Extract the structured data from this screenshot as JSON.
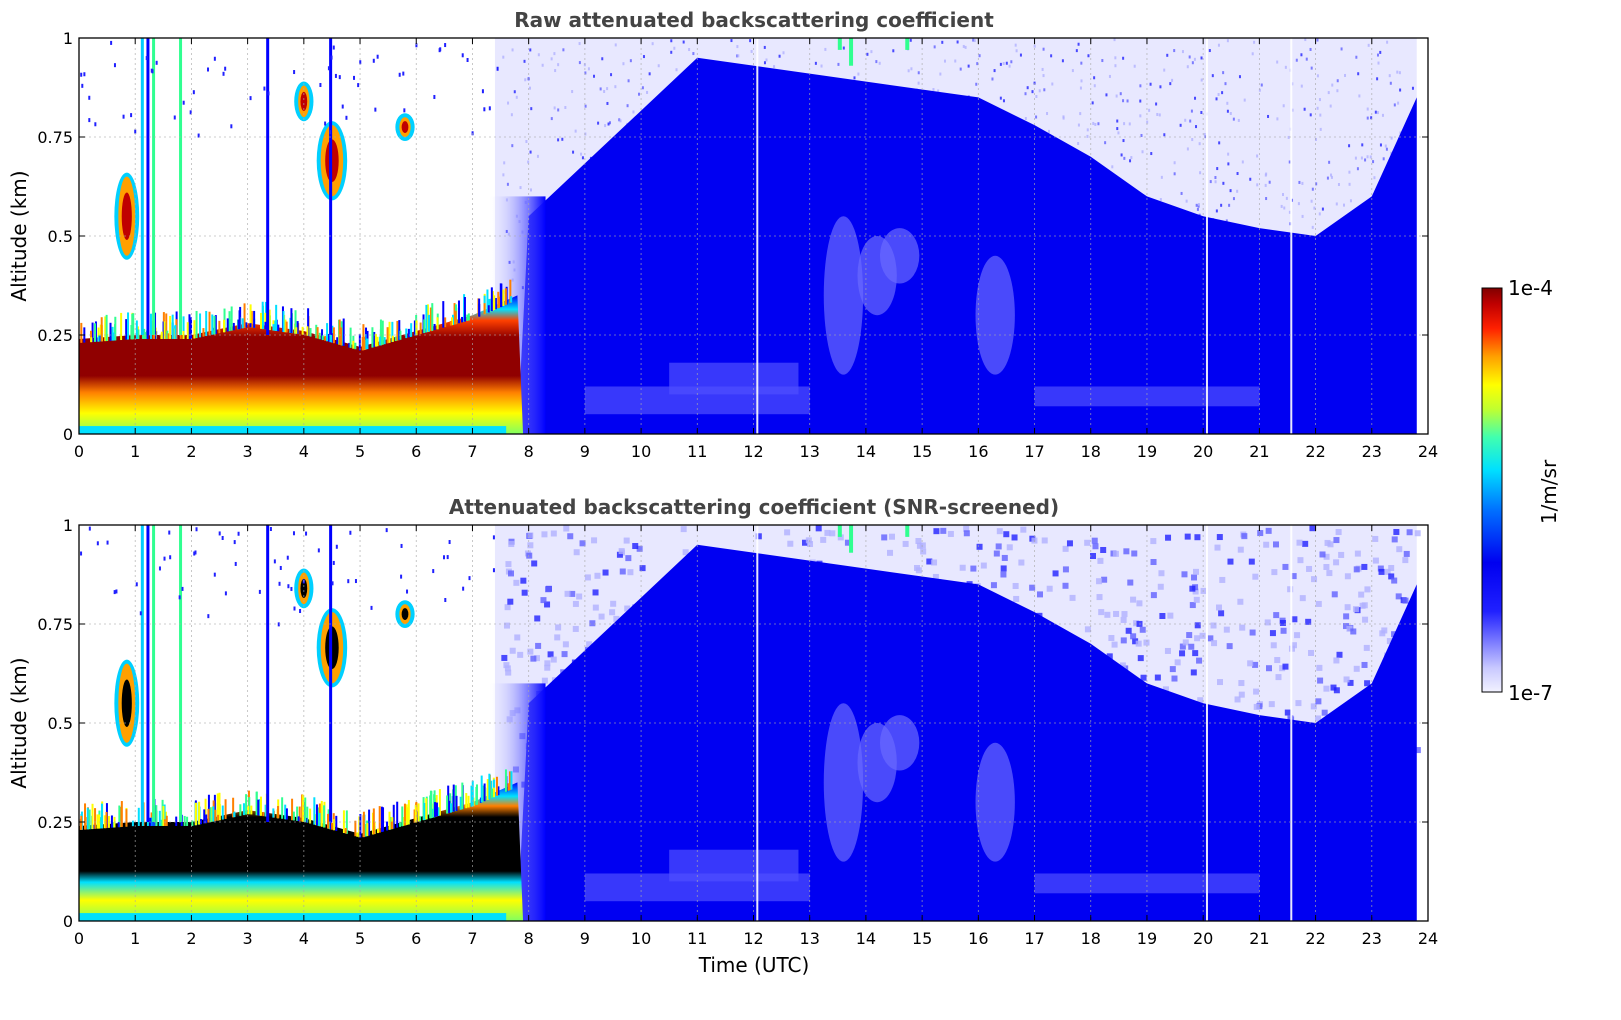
{
  "chart_data": [
    {
      "type": "heatmap",
      "title": "Raw attenuated backscattering coefficient",
      "xlabel": "",
      "ylabel": "Altitude (km)",
      "xlim": [
        0,
        24
      ],
      "ylim": [
        0,
        1
      ],
      "x_ticks": [
        "0",
        "1",
        "2",
        "3",
        "4",
        "5",
        "6",
        "7",
        "8",
        "9",
        "10",
        "11",
        "12",
        "13",
        "14",
        "15",
        "16",
        "17",
        "18",
        "19",
        "20",
        "21",
        "22",
        "23",
        "24"
      ],
      "y_ticks": [
        "0",
        "0.25",
        "0.5",
        "0.75",
        "1"
      ],
      "grid": true,
      "data_end_time": 23.8,
      "features": {
        "boundary_layer_top": [
          [
            0,
            0.24
          ],
          [
            1,
            0.25
          ],
          [
            2,
            0.25
          ],
          [
            3,
            0.28
          ],
          [
            4,
            0.26
          ],
          [
            5,
            0.22
          ],
          [
            6,
            0.26
          ],
          [
            7,
            0.3
          ],
          [
            7.8,
            0.35
          ]
        ],
        "clouds": [
          {
            "t": [
              0.7,
              1.0
            ],
            "z": [
              0.45,
              0.65
            ]
          },
          {
            "t": [
              4.3,
              4.7
            ],
            "z": [
              0.6,
              0.78
            ]
          },
          {
            "t": [
              3.9,
              4.1
            ],
            "z": [
              0.8,
              0.88
            ]
          },
          {
            "t": [
              5.7,
              5.9
            ],
            "z": [
              0.75,
              0.8
            ]
          }
        ],
        "aerosol_layer_top": [
          [
            8,
            0.55
          ],
          [
            11,
            0.95
          ],
          [
            16,
            0.85
          ],
          [
            17,
            0.78
          ],
          [
            18,
            0.7
          ],
          [
            19,
            0.6
          ],
          [
            20,
            0.55
          ],
          [
            21,
            0.52
          ],
          [
            22,
            0.5
          ],
          [
            23,
            0.6
          ],
          [
            23.8,
            0.85
          ]
        ]
      }
    },
    {
      "type": "heatmap",
      "title": "Attenuated backscattering coefficient (SNR-screened)",
      "xlabel": "Time (UTC)",
      "ylabel": "Altitude (km)",
      "xlim": [
        0,
        24
      ],
      "ylim": [
        0,
        1
      ],
      "x_ticks": [
        "0",
        "1",
        "2",
        "3",
        "4",
        "5",
        "6",
        "7",
        "8",
        "9",
        "10",
        "11",
        "12",
        "13",
        "14",
        "15",
        "16",
        "17",
        "18",
        "19",
        "20",
        "21",
        "22",
        "23",
        "24"
      ],
      "y_ticks": [
        "0",
        "0.25",
        "0.5",
        "0.75",
        "1"
      ],
      "grid": true,
      "data_end_time": 23.8
    }
  ],
  "colorbar": {
    "label": "1/m/sr",
    "max_label": "1e-4",
    "min_label": "1e-7",
    "scale": "log",
    "colors": [
      "#eeeeff",
      "#c8c8ff",
      "#9a9aff",
      "#5a5aff",
      "#2222ff",
      "#0000ee",
      "#0066ff",
      "#00ccff",
      "#33ffcc",
      "#aaff44",
      "#ffff00",
      "#ffaa00",
      "#ff4400",
      "#cc0000",
      "#800000"
    ]
  }
}
